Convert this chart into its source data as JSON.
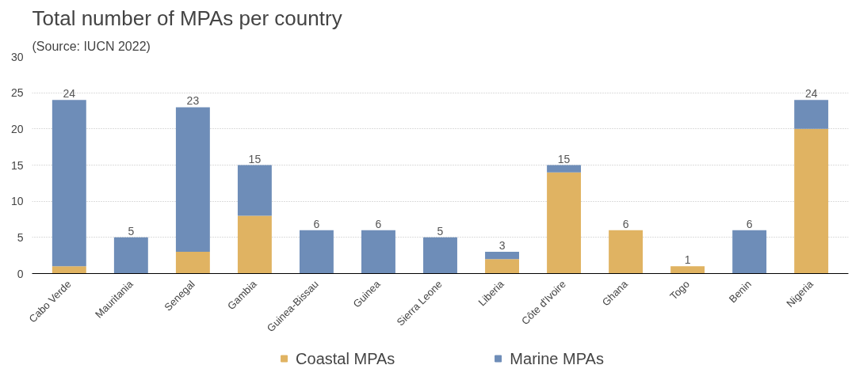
{
  "chart_data": {
    "type": "bar",
    "title": "Total number of MPAs per country",
    "subtitle": "(Source: IUCN 2022)",
    "categories": [
      "Cabo Verde",
      "Mauritania",
      "Senegal",
      "Gambia",
      "Guinea-Bissau",
      "Guinea",
      "Sierra Leone",
      "Liberia",
      "Côte d'Ivoire",
      "Ghana",
      "Togo",
      "Benin",
      "Nigeria"
    ],
    "series": [
      {
        "name": "Coastal MPAs",
        "color": "#e0b362",
        "values": [
          1,
          0,
          3,
          8,
          0,
          0,
          0,
          2,
          14,
          6,
          1,
          0,
          20
        ]
      },
      {
        "name": "Marine MPAs",
        "color": "#6e8db8",
        "values": [
          23,
          5,
          20,
          7,
          6,
          6,
          5,
          1,
          1,
          0,
          0,
          6,
          4
        ]
      }
    ],
    "stacked": true,
    "totals": [
      "24",
      "5",
      "23",
      "15",
      "6",
      "6",
      "5",
      "3",
      "15",
      "6",
      "1",
      "6",
      "24"
    ],
    "ylim": [
      0,
      30
    ],
    "yticks": [
      0,
      5,
      10,
      15,
      20,
      25,
      30
    ],
    "grid": "y",
    "legend": "bottom"
  }
}
